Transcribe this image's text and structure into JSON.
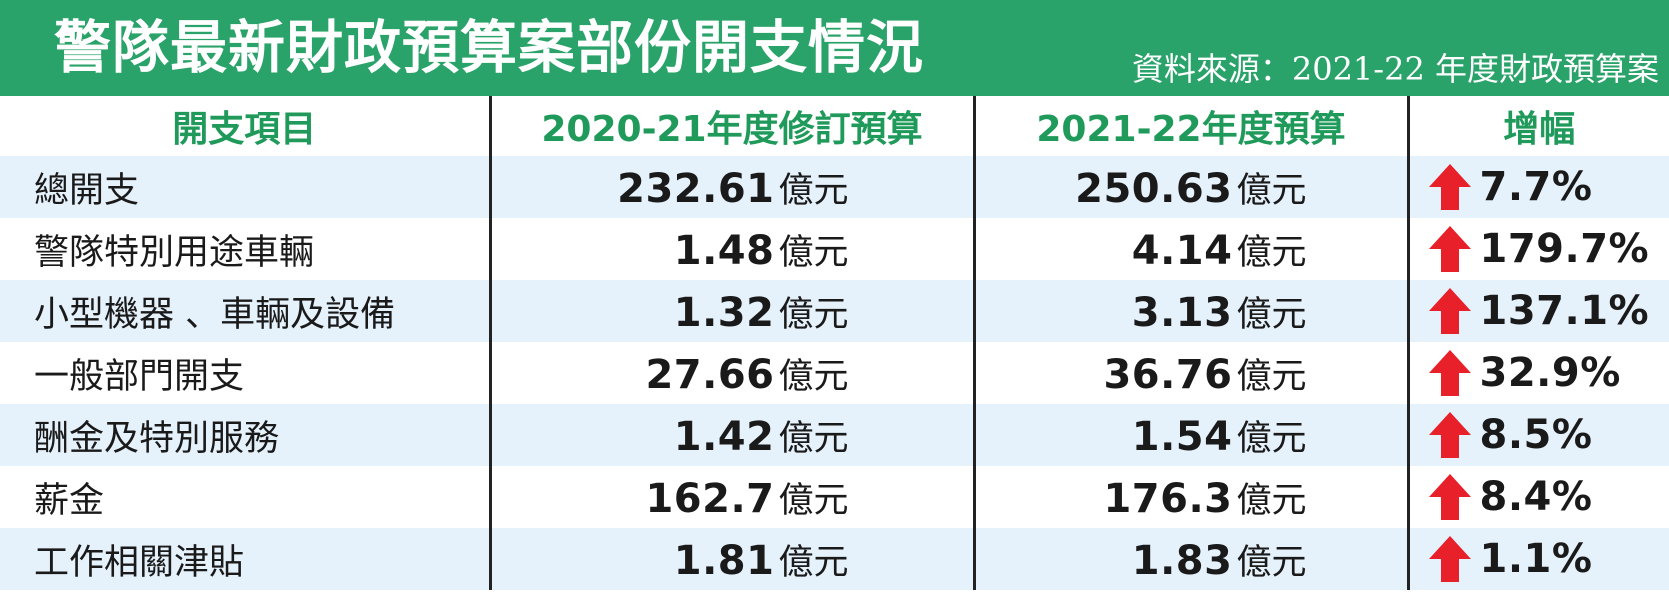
{
  "title": "警隊最新財政預算案部份開支情況",
  "source": "資料來源：2021-22 年度財政預算案",
  "columns": [
    "開支項目",
    "2020-21年度修訂預算",
    "2021-22年度預算",
    "增幅"
  ],
  "unit": "億元",
  "colors": {
    "header_bg": "#2aa36a",
    "header_text": "#1f9a5a",
    "stripe": "#e5f1fb",
    "arrow": "#e8202a"
  },
  "chart_data": {
    "type": "table",
    "columns": [
      "開支項目",
      "2020-21年度修訂預算",
      "2021-22年度預算",
      "增幅"
    ],
    "rows": [
      {
        "item": "總開支",
        "v1": "232.61",
        "v2": "250.63",
        "increase": "7.7%",
        "direction": "up"
      },
      {
        "item": "警隊特別用途車輛",
        "v1": "1.48",
        "v2": "4.14",
        "increase": "179.7%",
        "direction": "up"
      },
      {
        "item": "小型機器 、車輛及設備",
        "v1": "1.32",
        "v2": "3.13",
        "increase": "137.1%",
        "direction": "up"
      },
      {
        "item": "一般部門開支",
        "v1": "27.66",
        "v2": "36.76",
        "increase": "32.9%",
        "direction": "up"
      },
      {
        "item": "酬金及特別服務",
        "v1": "1.42",
        "v2": "1.54",
        "increase": "8.5%",
        "direction": "up"
      },
      {
        "item": "薪金",
        "v1": "162.7",
        "v2": "176.3",
        "increase": "8.4%",
        "direction": "up"
      },
      {
        "item": "工作相關津貼",
        "v1": "1.81",
        "v2": "1.83",
        "increase": "1.1%",
        "direction": "up"
      }
    ]
  }
}
